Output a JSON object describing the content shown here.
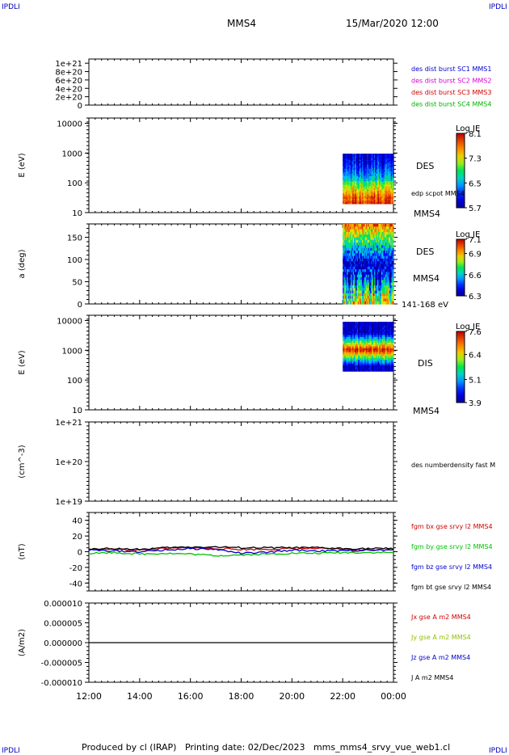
{
  "header": {
    "corner_left": "IPDLI",
    "corner_right": "IPDLI",
    "spacecraft": "MMS4",
    "datetime": "15/Mar/2020 12:00"
  },
  "footer": {
    "text": "Produced by cl (IRAP)   Printing date: 02/Dec/2023   mms_mms4_srvy_vue_web1.cl",
    "corner_left": "IPDLI",
    "corner_right": "IPDLI"
  },
  "chart_data": [
    {
      "type": "line",
      "panel": "distribution-flags",
      "yticks": [
        "1e+21",
        "8e+20",
        "6e+20",
        "4e+20",
        "2e+20",
        "0"
      ],
      "ylim": [
        0,
        1.1e+21
      ],
      "xlim": [
        "12:00",
        "00:00"
      ],
      "series": [
        {
          "name": "des dist burst SC1 MMS1",
          "color": "#0000d0",
          "values": [
            0,
            0
          ]
        },
        {
          "name": "des dist burst SC2 MMS2",
          "color": "#d000d0",
          "values": [
            0,
            0
          ]
        },
        {
          "name": "des dist burst SC3 MMS3",
          "color": "#d00000",
          "values": [
            0,
            0
          ]
        },
        {
          "name": "des dist burst SC4 MMS4",
          "color": "#00b000",
          "values": [
            0,
            0
          ]
        }
      ]
    },
    {
      "type": "heatmap",
      "panel": "des-energy-spectrogram",
      "ylabel": "E (eV)",
      "yscale": "log",
      "yticks": [
        "10000",
        "1000",
        "100",
        "10"
      ],
      "ylim": [
        10,
        15000
      ],
      "data_start": "22:00",
      "data_end": "00:00",
      "data_energy_range": [
        20,
        950
      ],
      "colorbar": {
        "title": "Log JE",
        "ticks": [
          "8.1",
          "7.3",
          "6.5",
          "5.7"
        ],
        "range": [
          5.7,
          8.1
        ]
      },
      "labels": [
        "DES",
        "edp scpot MMS4",
        "MMS4"
      ]
    },
    {
      "type": "heatmap",
      "panel": "des-pitch-angle",
      "ylabel": "a (deg)",
      "yticks": [
        "150",
        "100",
        "50",
        "0"
      ],
      "ylim": [
        0,
        180
      ],
      "data_start": "22:00",
      "data_end": "00:00",
      "colorbar": {
        "title": "Log JE",
        "ticks": [
          "7.1",
          "6.9",
          "6.6",
          "6.3"
        ],
        "range": [
          6.3,
          7.1
        ]
      },
      "labels": [
        "DES",
        "MMS4",
        "141-168 eV"
      ]
    },
    {
      "type": "heatmap",
      "panel": "dis-energy-spectrogram",
      "ylabel": "E (eV)",
      "yscale": "log",
      "yticks": [
        "10000",
        "1000",
        "100",
        "10"
      ],
      "ylim": [
        10,
        15000
      ],
      "data_start": "22:00",
      "data_end": "00:00",
      "data_energy_range": [
        200,
        9000
      ],
      "colorbar": {
        "title": "Log JE",
        "ticks": [
          "7.6",
          "6.4",
          "5.1",
          "3.9"
        ],
        "range": [
          3.9,
          7.6
        ]
      },
      "labels": [
        "DIS",
        "MMS4"
      ]
    },
    {
      "type": "line",
      "panel": "number-density",
      "ylabel": "(cm^-3)",
      "yscale": "log",
      "yticks": [
        "1e+21",
        "1e+20",
        "1e+19"
      ],
      "ylim": [
        1e+19,
        1e+21
      ],
      "series": [
        {
          "name": "des numberdensity fast M",
          "color": "#000000",
          "values": []
        }
      ]
    },
    {
      "type": "line",
      "panel": "magnetic-field",
      "ylabel": "(nT)",
      "yticks": [
        "40",
        "20",
        "0",
        "-20",
        "-40"
      ],
      "ylim": [
        -50,
        50
      ],
      "x": [
        "12:00",
        "13:00",
        "14:00",
        "15:00",
        "16:00",
        "17:00",
        "18:00",
        "19:00",
        "20:00",
        "21:00",
        "22:00",
        "23:00",
        "00:00"
      ],
      "series": [
        {
          "name": "fgm bx gse srvy l2 MMS4",
          "color": "#d00000",
          "values": [
            3,
            3,
            2,
            4,
            5,
            4,
            3,
            3,
            4,
            4,
            3,
            2,
            3
          ]
        },
        {
          "name": "fgm by gse srvy l2 MMS4",
          "color": "#00c000",
          "values": [
            -2,
            -1,
            -3,
            -2,
            -3,
            -5,
            -4,
            -3,
            -2,
            -2,
            -1,
            -1,
            -1
          ]
        },
        {
          "name": "fgm bz gse srvy l2 MMS4",
          "color": "#0000d0",
          "values": [
            2,
            1,
            0,
            2,
            4,
            3,
            -2,
            -1,
            2,
            1,
            1,
            2,
            2
          ]
        },
        {
          "name": "fgm bt gse srvy l2 MMS4",
          "color": "#000000",
          "values": [
            4,
            4,
            3,
            5,
            6,
            6,
            5,
            5,
            5,
            5,
            4,
            4,
            4
          ]
        }
      ]
    },
    {
      "type": "line",
      "panel": "current-density",
      "ylabel": "(A/m2)",
      "yticks": [
        "0.000010",
        "0.000005",
        "0.000000",
        "-0.000005",
        "-0.000010"
      ],
      "ylim": [
        -1e-05,
        1e-05
      ],
      "series": [
        {
          "name": "Jx gse A m2 MMS4",
          "color": "#d00000",
          "values": [
            0,
            0
          ]
        },
        {
          "name": "Jy gse A m2 MMS4",
          "color": "#90c000",
          "values": [
            0,
            0
          ]
        },
        {
          "name": "Jz gse A m2 MMS4",
          "color": "#0000d0",
          "values": [
            0,
            0
          ]
        },
        {
          "name": "J A m2 MMS4",
          "color": "#000000",
          "values": [
            0,
            0
          ]
        }
      ]
    }
  ],
  "time_axis": {
    "ticks": [
      "12:00",
      "14:00",
      "16:00",
      "18:00",
      "20:00",
      "22:00",
      "00:00"
    ]
  }
}
